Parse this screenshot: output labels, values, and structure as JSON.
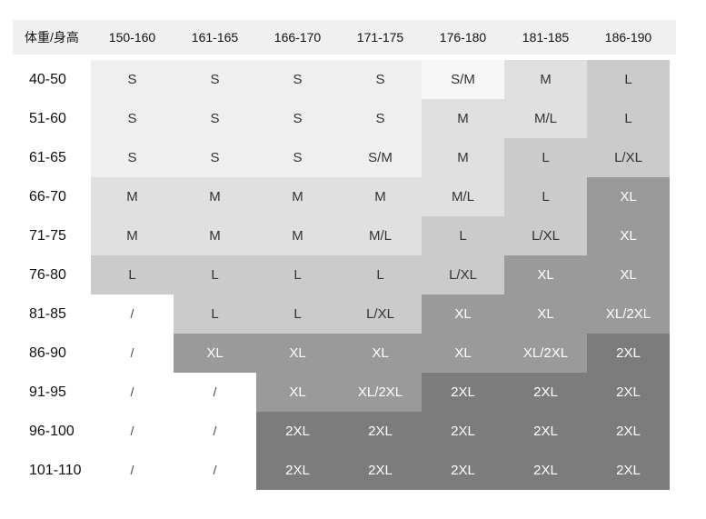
{
  "table": {
    "corner_label": "体重/身高",
    "columns": [
      "150-160",
      "161-165",
      "166-170",
      "171-175",
      "176-180",
      "181-185",
      "186-190"
    ],
    "rows": [
      {
        "label": "40-50",
        "sizes": [
          "S",
          "S",
          "S",
          "S",
          "S/M",
          "M",
          "L"
        ]
      },
      {
        "label": "51-60",
        "sizes": [
          "S",
          "S",
          "S",
          "S",
          "M",
          "M/L",
          "L"
        ]
      },
      {
        "label": "61-65",
        "sizes": [
          "S",
          "S",
          "S",
          "S/M",
          "M",
          "L",
          "L/XL"
        ]
      },
      {
        "label": "66-70",
        "sizes": [
          "M",
          "M",
          "M",
          "M",
          "M/L",
          "L",
          "XL"
        ]
      },
      {
        "label": "71-75",
        "sizes": [
          "M",
          "M",
          "M",
          "M/L",
          "L",
          "L/XL",
          "XL"
        ]
      },
      {
        "label": "76-80",
        "sizes": [
          "L",
          "L",
          "L",
          "L",
          "L/XL",
          "XL",
          "XL"
        ]
      },
      {
        "label": "81-85",
        "sizes": [
          "/",
          "L",
          "L",
          "L/XL",
          "XL",
          "XL",
          "XL/2XL"
        ]
      },
      {
        "label": "86-90",
        "sizes": [
          "/",
          "XL",
          "XL",
          "XL",
          "XL",
          "XL/2XL",
          "2XL"
        ]
      },
      {
        "label": "91-95",
        "sizes": [
          "/",
          "/",
          "XL",
          "XL/2XL",
          "2XL",
          "2XL",
          "2XL"
        ]
      },
      {
        "label": "96-100",
        "sizes": [
          "/",
          "/",
          "2XL",
          "2XL",
          "2XL",
          "2XL",
          "2XL"
        ]
      },
      {
        "label": "101-110",
        "sizes": [
          "/",
          "/",
          "2XL",
          "2XL",
          "2XL",
          "2XL",
          "2XL"
        ]
      }
    ]
  },
  "size_colors": {
    "S": "#efefef",
    "S/M": "#efefef",
    "M": "#e0e0e0",
    "M/L": "#e0e0e0",
    "L": "#cbcbcb",
    "L/XL": "#cbcbcb",
    "XL": "#9a9a9a",
    "XL/2XL": "#9a9a9a",
    "2XL": "#7c7c7c",
    "/": "#ffffff"
  },
  "text_colors": {
    "dark": "#222222",
    "mid": "#333333",
    "on_dark": "#ffffff"
  },
  "cell_overrides": {
    "0-4": "#f7f7f7",
    "0-5": "#e0e0e0",
    "0-6": "#cbcbcb",
    "1-4": "#e0e0e0",
    "1-5": "#e0e0e0",
    "1-6": "#cbcbcb",
    "2-3": "#efefef",
    "2-4": "#e0e0e0",
    "2-5": "#cbcbcb",
    "2-6": "#cbcbcb",
    "3-0": "#e0e0e0",
    "3-1": "#e0e0e0",
    "3-2": "#e0e0e0",
    "3-3": "#e0e0e0",
    "3-4": "#e0e0e0",
    "3-5": "#cbcbcb",
    "3-6": "#9a9a9a",
    "4-0": "#e0e0e0",
    "4-1": "#e0e0e0",
    "4-2": "#e0e0e0",
    "4-3": "#e0e0e0",
    "4-4": "#cbcbcb",
    "4-5": "#cbcbcb",
    "4-6": "#9a9a9a",
    "5-0": "#cbcbcb",
    "5-1": "#cbcbcb",
    "5-2": "#cbcbcb",
    "5-3": "#cbcbcb",
    "5-4": "#cbcbcb",
    "5-5": "#9a9a9a",
    "5-6": "#9a9a9a",
    "6-0": "#ffffff",
    "6-1": "#cbcbcb",
    "6-2": "#cbcbcb",
    "6-3": "#cbcbcb",
    "6-4": "#9a9a9a",
    "6-5": "#9a9a9a",
    "6-6": "#9a9a9a",
    "7-0": "#ffffff",
    "7-1": "#9a9a9a",
    "7-2": "#9a9a9a",
    "7-3": "#9a9a9a",
    "7-4": "#9a9a9a",
    "7-5": "#9a9a9a",
    "7-6": "#7c7c7c",
    "8-0": "#ffffff",
    "8-1": "#ffffff",
    "8-2": "#9a9a9a",
    "8-3": "#9a9a9a",
    "8-4": "#7c7c7c",
    "8-5": "#7c7c7c",
    "8-6": "#7c7c7c",
    "9-0": "#ffffff",
    "9-1": "#ffffff",
    "9-2": "#7c7c7c",
    "9-3": "#7c7c7c",
    "9-4": "#7c7c7c",
    "9-5": "#7c7c7c",
    "9-6": "#7c7c7c",
    "10-0": "#ffffff",
    "10-1": "#ffffff",
    "10-2": "#7c7c7c",
    "10-3": "#7c7c7c",
    "10-4": "#7c7c7c",
    "10-5": "#7c7c7c",
    "10-6": "#7c7c7c"
  }
}
